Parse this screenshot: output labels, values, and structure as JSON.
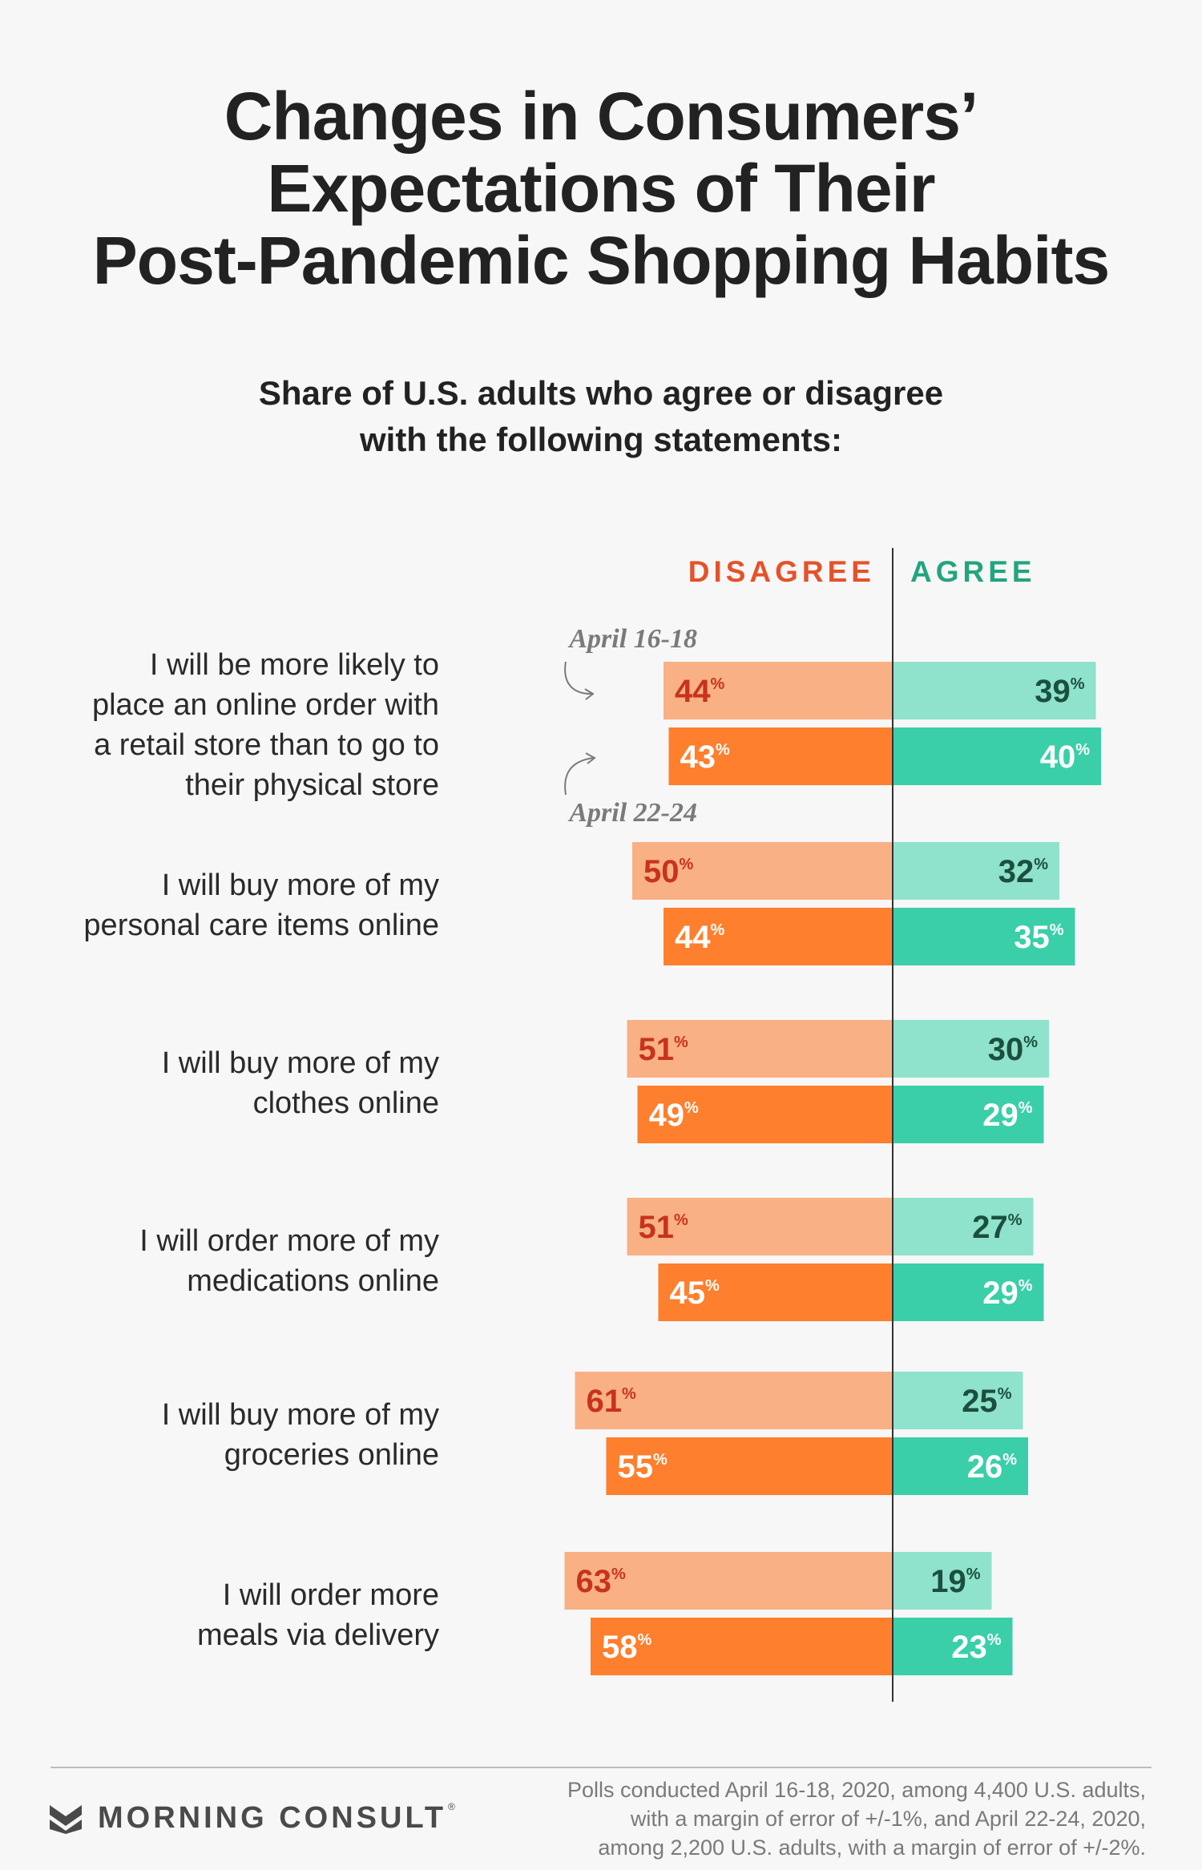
{
  "title": {
    "line1": "Changes in Consumers’",
    "line2": "Expectations of Their",
    "line3": "Post-Pandemic Shopping Habits"
  },
  "subtitle": {
    "line1": "Share of U.S. adults who agree or disagree",
    "line2": "with the following statements:"
  },
  "colors": {
    "disagree_light": "#f9b084",
    "disagree_dark": "#fe7f2d",
    "agree_light": "#8fe2cb",
    "agree_dark": "#3acfa9",
    "disagree_label": "#e5522a",
    "agree_label": "#22a57f",
    "light_value_text_disagree": "#c7331c",
    "light_value_text_agree": "#1b4f3e"
  },
  "chart_data": {
    "type": "bar",
    "orientation": "diverging-horizontal",
    "headers": {
      "disagree": "DISAGREE",
      "agree": "AGREE"
    },
    "percent_sign": "%",
    "annotations": {
      "first_poll": "April 16-18",
      "second_poll": "April 22-24"
    },
    "categories": [
      [
        "I will be more likely to",
        "place an online order with",
        "a retail store than to go to",
        "their physical store"
      ],
      [
        "I will buy more of my",
        "personal care items online"
      ],
      [
        "I will buy more of my",
        "clothes online"
      ],
      [
        "I will order more of my",
        "medications online"
      ],
      [
        "I will buy more of my",
        "groceries online"
      ],
      [
        "I will order more",
        "meals via delivery"
      ]
    ],
    "series": [
      {
        "name": "April 16-18",
        "disagree": [
          44,
          50,
          51,
          51,
          61,
          63
        ],
        "agree": [
          39,
          32,
          30,
          27,
          25,
          19
        ]
      },
      {
        "name": "April 22-24",
        "disagree": [
          43,
          44,
          49,
          45,
          55,
          58
        ],
        "agree": [
          40,
          35,
          29,
          29,
          26,
          23
        ]
      }
    ]
  },
  "footer": {
    "brand": "MORNING CONSULT",
    "note_line1": "Polls conducted April 16-18, 2020, among 4,400 U.S. adults,",
    "note_line2": "with a margin of error of +/-1%, and April 22-24, 2020,",
    "note_line3": "among 2,200 U.S. adults, with a margin of error of +/-2%."
  }
}
